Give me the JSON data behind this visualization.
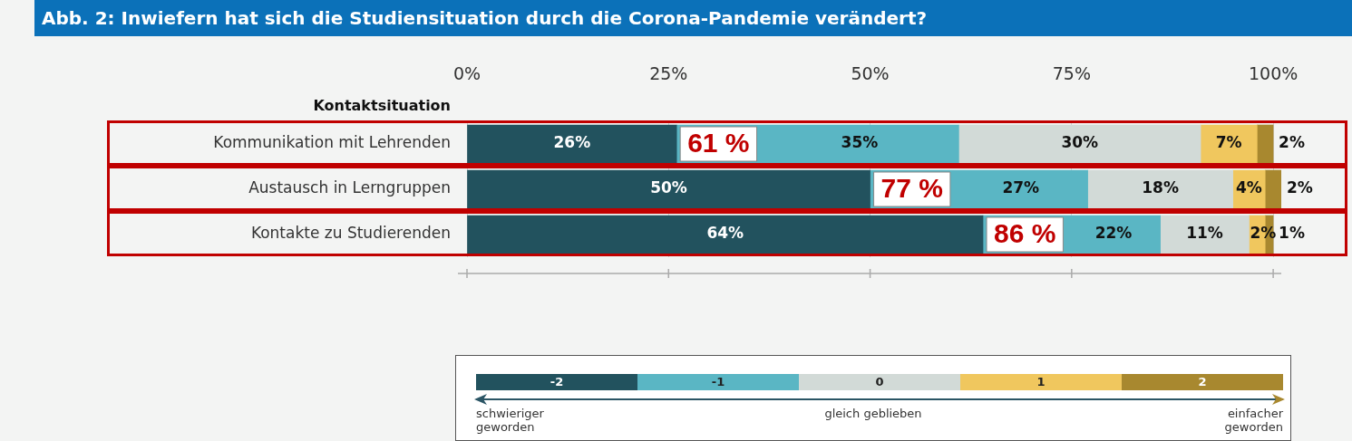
{
  "chart_data": {
    "type": "bar",
    "orientation": "horizontal",
    "stacked": true,
    "title": "Abb. 2: Inwiefern hat sich die Studiensituation durch die Corona-Pandemie verändert?",
    "ylabel": "Kontaktsituation",
    "categories": [
      "Kommunikation mit Lehrenden",
      "Austausch in Lerngruppen",
      "Kontakte zu Studierenden"
    ],
    "series": [
      {
        "name": "-2",
        "color": "#22525e",
        "values": [
          26,
          50,
          64
        ],
        "value_labels": [
          "26%",
          "50%",
          "64%"
        ]
      },
      {
        "name": "-1",
        "color": "#5ab6c4",
        "values": [
          35,
          27,
          22
        ],
        "value_labels": [
          "35%",
          "27%",
          "22%"
        ]
      },
      {
        "name": "0",
        "color": "#d2dad7",
        "values": [
          30,
          18,
          11
        ],
        "value_labels": [
          "30%",
          "18%",
          "11%"
        ]
      },
      {
        "name": "1",
        "color": "#f0c75e",
        "values": [
          7,
          4,
          2
        ],
        "value_labels": [
          "7%",
          "4%",
          "2%"
        ]
      },
      {
        "name": "2",
        "color": "#a8882f",
        "values": [
          2,
          2,
          1
        ],
        "value_labels": [
          "2%",
          "2%",
          "1%"
        ]
      }
    ],
    "xlim": [
      0,
      101
    ],
    "xticks": [
      {
        "value": 0,
        "label": "0%"
      },
      {
        "value": 25,
        "label": "25%"
      },
      {
        "value": 50,
        "label": "50%"
      },
      {
        "value": 75,
        "label": "75%"
      },
      {
        "value": 100,
        "label": "100%"
      }
    ],
    "grid": "x",
    "legend": "bottom",
    "annotations": [
      "61 %",
      "77 %",
      "86 %",
      "schwieriger geworden",
      "gleich geblieben",
      "einfacher geworden"
    ]
  }
}
